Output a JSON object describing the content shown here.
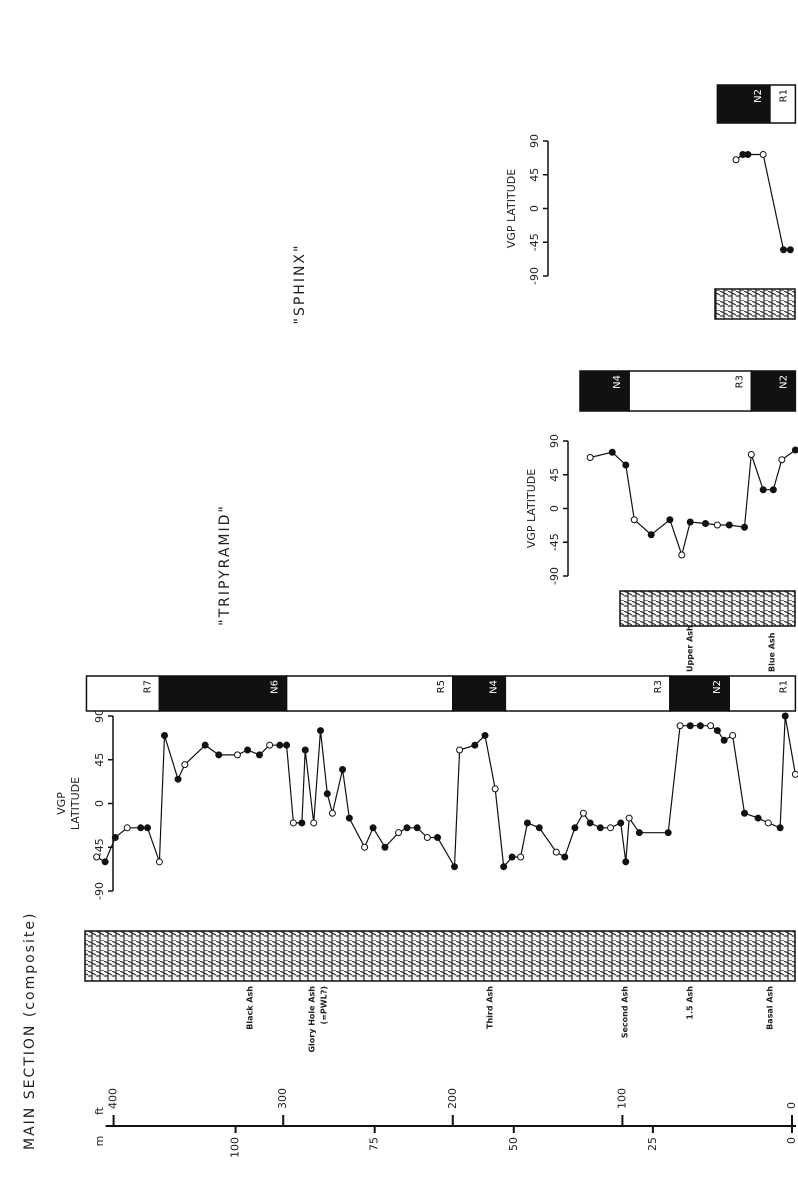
{
  "figure": {
    "depth_axis": {
      "unit_ft": "ft",
      "unit_m": "m",
      "ft_lim": [
        0,
        400
      ],
      "ft_ticks": [
        0,
        100,
        200,
        300,
        400
      ],
      "m_lim": [
        0,
        121.92
      ],
      "m_ticks": [
        0,
        25,
        50,
        75,
        100
      ]
    },
    "ash_labels": [
      "Black Ash",
      "Glory Hole Ash",
      "(=PWL?)",
      "Third Ash",
      "Second Ash",
      "1.5 Ash",
      "Basal Ash",
      "Upper Ash",
      "Blue Ash"
    ],
    "sections": [
      {
        "name": "MAIN SECTION (composite)",
        "axis_label": [
          "VGP",
          "LATITUDE"
        ],
        "vgp_lim": [
          -90,
          90
        ],
        "vgp_ticks": [
          -90,
          -45,
          0,
          45,
          90
        ],
        "points": {
          "x": [
            410,
            405,
            399,
            392,
            384,
            380,
            373,
            370,
            362,
            358,
            346,
            338,
            327,
            321,
            314,
            308,
            302,
            298,
            294,
            289,
            287,
            282,
            278,
            274,
            271,
            265,
            261,
            252,
            247,
            240,
            232,
            227,
            221,
            215,
            209,
            199,
            196,
            187,
            181,
            175,
            170,
            165,
            160,
            156,
            149,
            139,
            134,
            128,
            123,
            119,
            113,
            107,
            101,
            98,
            96,
            90,
            73,
            66,
            60,
            54,
            48,
            44,
            40,
            35,
            28,
            20,
            14,
            7,
            4,
            -2
          ],
          "vgp": [
            -55,
            -60,
            -35,
            -25,
            -25,
            -25,
            -60,
            70,
            25,
            40,
            60,
            50,
            50,
            55,
            50,
            60,
            60,
            60,
            -20,
            -20,
            55,
            -20,
            75,
            10,
            -10,
            35,
            -15,
            -45,
            -25,
            -45,
            -30,
            -25,
            -25,
            -35,
            -35,
            -65,
            55,
            60,
            70,
            15,
            -65,
            -55,
            -55,
            -20,
            -25,
            -50,
            -55,
            -25,
            -10,
            -20,
            -25,
            -25,
            -20,
            -60,
            -15,
            -30,
            -30,
            80,
            80,
            80,
            80,
            75,
            65,
            70,
            -10,
            -15,
            -20,
            -25,
            90,
            30
          ]
        },
        "zones": [
          {
            "label": "R7",
            "from": 416,
            "to": 373,
            "color": "#ffffff"
          },
          {
            "label": "N6",
            "from": 373,
            "to": 298,
            "color": "#111111"
          },
          {
            "label": "R5",
            "from": 298,
            "to": 200,
            "color": "#ffffff"
          },
          {
            "label": "N4",
            "from": 200,
            "to": 169,
            "color": "#111111"
          },
          {
            "label": "R3",
            "from": 169,
            "to": 72,
            "color": "#ffffff"
          },
          {
            "label": "N2",
            "from": 72,
            "to": 37,
            "color": "#111111"
          },
          {
            "label": "R1",
            "from": 37,
            "to": -2,
            "color": "#ffffff"
          }
        ]
      },
      {
        "name": "\"TRIPYRAMID\"",
        "axis_label": [
          "VGP LATITUDE"
        ],
        "vgp_lim": [
          -90,
          90
        ],
        "vgp_ticks": [
          -90,
          -45,
          0,
          45,
          90
        ],
        "points": {
          "x": [
            119,
            106,
            98,
            93,
            83,
            72,
            65,
            60,
            51,
            44,
            37,
            28,
            24,
            17,
            11,
            6,
            -2
          ],
          "vgp": [
            68,
            75,
            58,
            -15,
            -35,
            -15,
            -62,
            -18,
            -20,
            -22,
            -22,
            -25,
            72,
            25,
            25,
            65,
            78
          ]
        },
        "zones": [
          {
            "label": "N4",
            "from": 125,
            "to": 96,
            "color": "#111111"
          },
          {
            "label": "R3",
            "from": 96,
            "to": 24,
            "color": "#ffffff"
          },
          {
            "label": "N2",
            "from": 24,
            "to": -2,
            "color": "#111111"
          }
        ]
      },
      {
        "name": "\"SPHINX\"",
        "axis_label": [
          "VGP LATITUDE"
        ],
        "vgp_lim": [
          -90,
          90
        ],
        "vgp_ticks": [
          -90,
          -45,
          0,
          45,
          90
        ],
        "points": {
          "x": [
            33,
            29,
            26,
            17,
            5,
            1
          ],
          "vgp": [
            65,
            72,
            72,
            72,
            -55,
            -55
          ]
        },
        "zones": [
          {
            "label": "N2",
            "from": 44,
            "to": 13,
            "color": "#111111"
          },
          {
            "label": "R1",
            "from": 13,
            "to": -2,
            "color": "#ffffff"
          }
        ]
      }
    ]
  }
}
